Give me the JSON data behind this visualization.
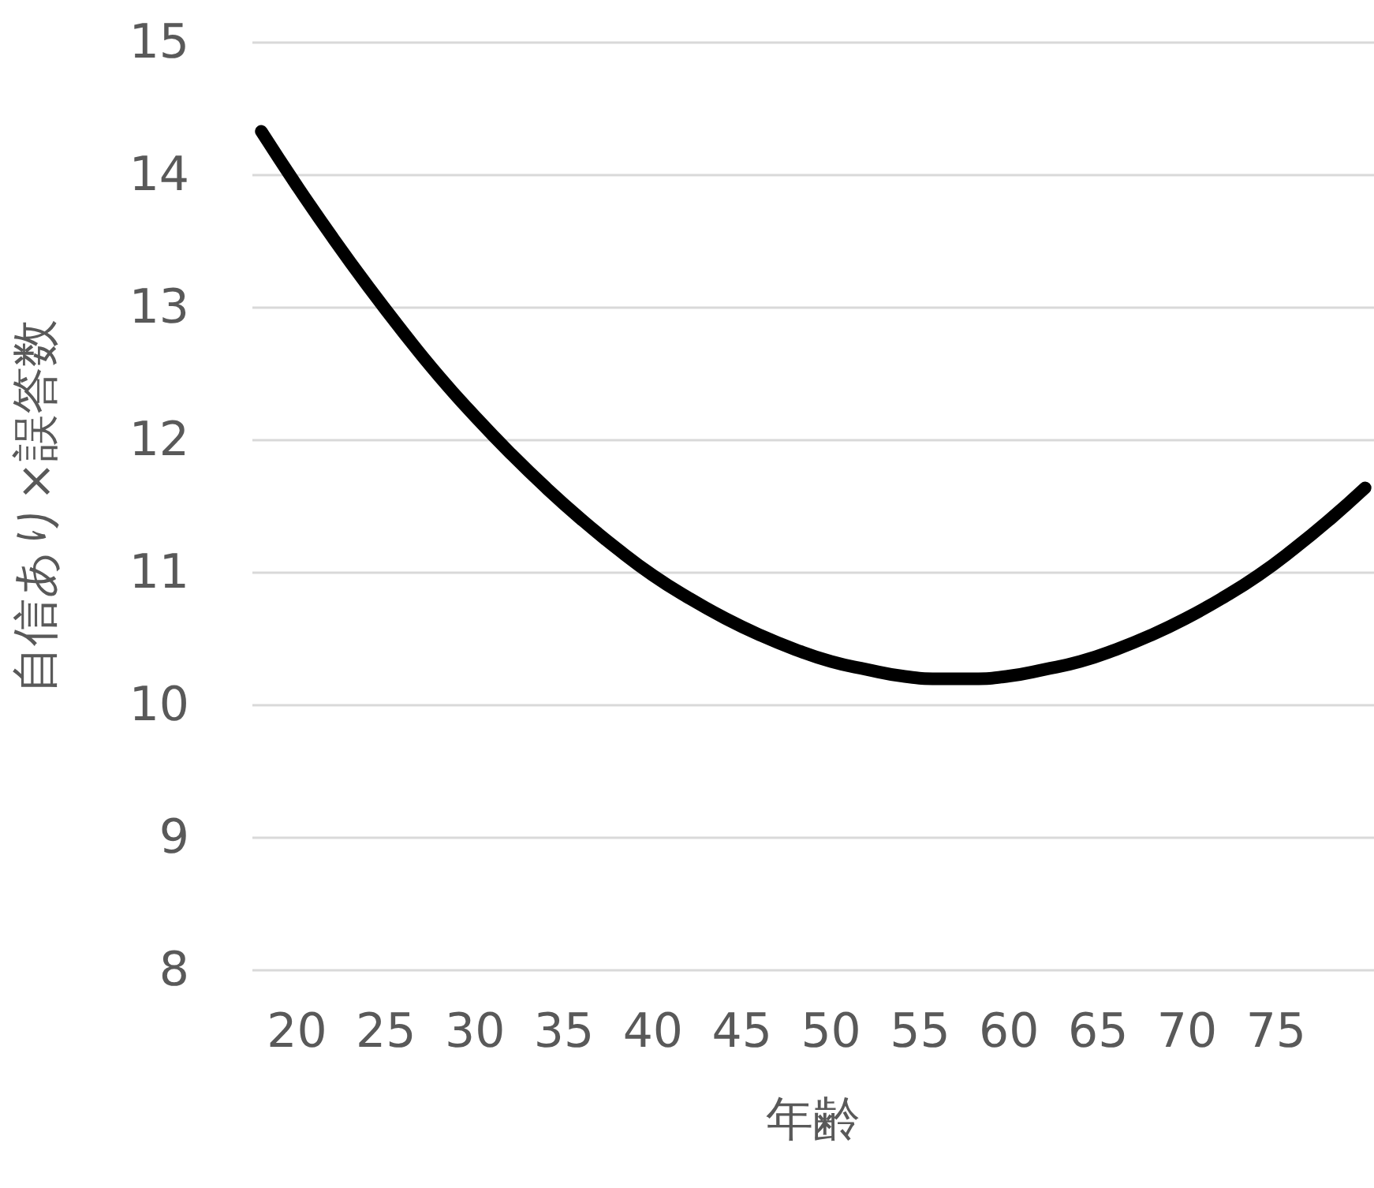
{
  "chart_data": {
    "type": "line",
    "xlabel": "年齢",
    "ylabel": "自信あり×誤答数",
    "x": [
      18,
      20,
      22,
      24,
      26,
      28,
      30,
      32,
      34,
      36,
      38,
      40,
      42,
      44,
      46,
      48,
      50,
      52,
      54,
      56,
      58,
      60,
      62,
      64,
      66,
      68,
      70,
      72,
      74,
      76,
      78,
      80
    ],
    "series": [
      {
        "color": "#000000",
        "values": [
          14.33,
          13.92,
          13.53,
          13.16,
          12.81,
          12.48,
          12.18,
          11.9,
          11.64,
          11.4,
          11.18,
          10.98,
          10.81,
          10.66,
          10.53,
          10.42,
          10.33,
          10.27,
          10.22,
          10.2,
          10.2,
          10.22,
          10.27,
          10.33,
          10.42,
          10.53,
          10.66,
          10.81,
          10.98,
          11.18,
          11.4,
          11.64
        ]
      }
    ],
    "xlim": [
      17.5,
      80.5
    ],
    "xticks": [
      20,
      25,
      30,
      35,
      40,
      45,
      50,
      55,
      60,
      65,
      70,
      75
    ],
    "ylim": [
      8,
      15
    ],
    "yticks": [
      8,
      9,
      10,
      11,
      12,
      13,
      14,
      15
    ],
    "grid": "y",
    "line_style": "solid"
  }
}
